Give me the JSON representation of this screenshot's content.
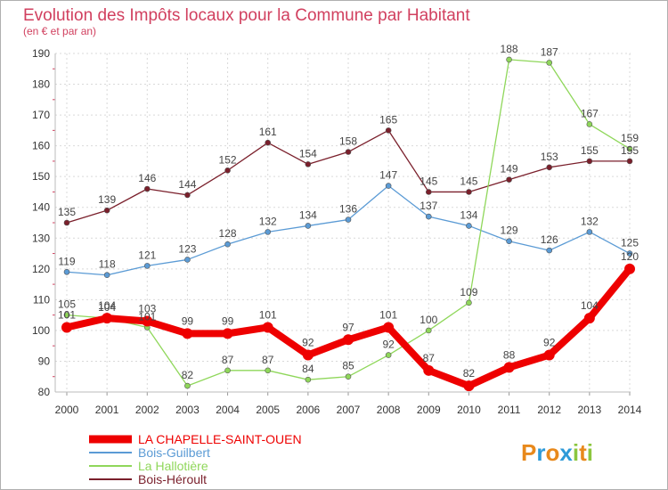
{
  "chart_data": {
    "type": "line",
    "title": "Evolution des Impôts locaux pour la Commune par Habitant",
    "subtitle": "(en € et par an)",
    "xlabel": "",
    "ylabel": "",
    "x": [
      "2000",
      "2001",
      "2002",
      "2003",
      "2004",
      "2005",
      "2006",
      "2007",
      "2008",
      "2009",
      "2010",
      "2011",
      "2012",
      "2013",
      "2014"
    ],
    "ylim": [
      80,
      190
    ],
    "yticks": [
      80,
      90,
      100,
      110,
      120,
      130,
      140,
      150,
      160,
      170,
      180,
      190
    ],
    "grid": true,
    "legend_position": "bottom-left",
    "series": [
      {
        "name": "Bois-Héroult",
        "color": "#7a1f2b",
        "values": [
          135,
          139,
          146,
          144,
          152,
          161,
          154,
          158,
          165,
          145,
          145,
          149,
          153,
          155,
          155
        ]
      },
      {
        "name": "Bois-Guilbert",
        "color": "#5b9bd5",
        "values": [
          119,
          118,
          121,
          123,
          128,
          132,
          134,
          136,
          147,
          137,
          134,
          129,
          126,
          132,
          125
        ]
      },
      {
        "name": "La Hallotière",
        "color": "#8fd75a",
        "values": [
          105,
          104,
          101,
          82,
          87,
          87,
          84,
          85,
          92,
          100,
          109,
          188,
          187,
          167,
          159
        ]
      },
      {
        "name": "LA CHAPELLE-SAINT-OUEN",
        "color": "#ee0000",
        "values": [
          101,
          104,
          103,
          99,
          99,
          101,
          92,
          97,
          101,
          87,
          82,
          88,
          92,
          104,
          120
        ]
      }
    ]
  },
  "brand": {
    "logo_text": "Proxiti",
    "logo_letters": [
      "P",
      "r",
      "o",
      "x",
      "i",
      "t",
      "i"
    ],
    "logo_colors": [
      "#e8891c",
      "#2e9ad8",
      "#e8891c",
      "#2e9ad8",
      "#8cc63f",
      "#e8891c",
      "#8cc63f"
    ]
  }
}
